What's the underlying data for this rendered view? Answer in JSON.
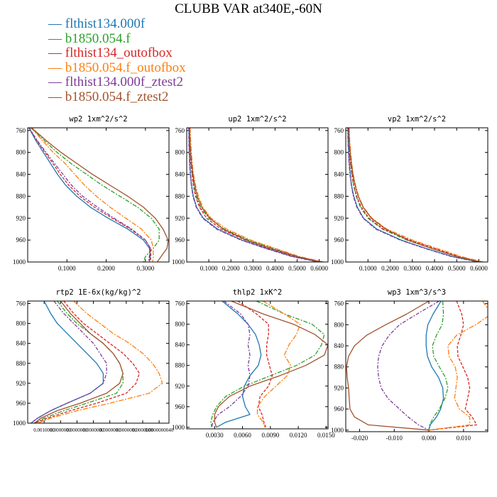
{
  "title": "CLUBB VAR at340E,-60N",
  "legend": [
    {
      "name": "flthist134.000f",
      "color": "#1f77b4"
    },
    {
      "name": "b1850.054.f",
      "color": "#2ca02c"
    },
    {
      "name": "flthist134_outofbox",
      "color": "#d62728"
    },
    {
      "name": "b1850.054.f_outofbox",
      "color": "#ff7f0e"
    },
    {
      "name": "flthist134.000f_ztest2",
      "color": "#7d3c98"
    },
    {
      "name": "b1850.054.f_ztest2",
      "color": "#a0522d"
    }
  ],
  "chart_data": [
    {
      "type": "line",
      "title": "wp2   1xm^2/s^2",
      "xlim": [
        0.0,
        0.36
      ],
      "ylim": [
        1000,
        755
      ],
      "xticks": [
        "0.1000",
        "0.2000",
        "0.3000"
      ],
      "xtick_values": [
        0.1,
        0.2,
        0.3
      ],
      "yticks": [
        760,
        800,
        840,
        880,
        920,
        960,
        1000
      ],
      "y": [
        755,
        780,
        800,
        820,
        840,
        860,
        880,
        900,
        920,
        940,
        960,
        975,
        990,
        1000
      ],
      "series": [
        {
          "values": [
            0.003,
            0.022,
            0.04,
            0.058,
            0.076,
            0.097,
            0.125,
            0.16,
            0.205,
            0.255,
            0.295,
            0.31,
            0.312,
            0.31
          ]
        },
        {
          "values": [
            0.008,
            0.045,
            0.075,
            0.11,
            0.15,
            0.19,
            0.235,
            0.28,
            0.315,
            0.335,
            0.335,
            0.32,
            0.3,
            0.295
          ]
        },
        {
          "values": [
            0.004,
            0.025,
            0.044,
            0.064,
            0.083,
            0.105,
            0.133,
            0.17,
            0.215,
            0.262,
            0.3,
            0.313,
            0.314,
            0.312
          ]
        },
        {
          "values": [
            0.01,
            0.04,
            0.065,
            0.095,
            0.12,
            0.145,
            0.175,
            0.21,
            0.25,
            0.29,
            0.315,
            0.32,
            0.32,
            0.318
          ]
        },
        {
          "values": [
            0.003,
            0.026,
            0.047,
            0.068,
            0.09,
            0.112,
            0.14,
            0.178,
            0.22,
            0.265,
            0.3,
            0.313,
            0.31,
            0.308
          ]
        },
        {
          "values": [
            0.01,
            0.05,
            0.085,
            0.125,
            0.165,
            0.21,
            0.255,
            0.295,
            0.325,
            0.345,
            0.358,
            0.355,
            0.34,
            0.33
          ]
        }
      ]
    },
    {
      "type": "line",
      "title": "up2   1xm^2/s^2",
      "xlim": [
        0.0,
        0.64
      ],
      "ylim": [
        1000,
        755
      ],
      "xticks": [
        "0.1000",
        "0.2000",
        "0.3000",
        "0.4000",
        "0.5000",
        "0.6000"
      ],
      "xtick_values": [
        0.1,
        0.2,
        0.3,
        0.4,
        0.5,
        0.6
      ],
      "yticks": [
        760,
        800,
        840,
        880,
        920,
        960,
        1000
      ],
      "y": [
        755,
        780,
        800,
        820,
        840,
        860,
        880,
        900,
        920,
        940,
        960,
        975,
        990,
        1000
      ],
      "series": [
        {
          "values": [
            0.01,
            0.011,
            0.012,
            0.014,
            0.017,
            0.022,
            0.03,
            0.045,
            0.075,
            0.14,
            0.25,
            0.36,
            0.48,
            0.6
          ]
        },
        {
          "values": [
            0.012,
            0.014,
            0.017,
            0.02,
            0.025,
            0.032,
            0.043,
            0.062,
            0.1,
            0.17,
            0.28,
            0.39,
            0.5,
            0.6
          ]
        },
        {
          "values": [
            0.012,
            0.014,
            0.016,
            0.019,
            0.024,
            0.03,
            0.04,
            0.058,
            0.09,
            0.155,
            0.265,
            0.37,
            0.49,
            0.605
          ]
        },
        {
          "values": [
            0.015,
            0.018,
            0.021,
            0.025,
            0.031,
            0.04,
            0.053,
            0.073,
            0.11,
            0.18,
            0.29,
            0.4,
            0.51,
            0.62
          ]
        },
        {
          "values": [
            0.009,
            0.01,
            0.011,
            0.013,
            0.016,
            0.021,
            0.028,
            0.043,
            0.072,
            0.135,
            0.245,
            0.355,
            0.475,
            0.595
          ]
        },
        {
          "values": [
            0.013,
            0.015,
            0.018,
            0.022,
            0.028,
            0.036,
            0.048,
            0.068,
            0.105,
            0.165,
            0.27,
            0.38,
            0.5,
            0.61
          ]
        }
      ]
    },
    {
      "type": "line",
      "title": "vp2   1xm^2/s^2",
      "xlim": [
        0.0,
        0.64
      ],
      "ylim": [
        1000,
        755
      ],
      "xticks": [
        "0.1000",
        "0.2000",
        "0.3000",
        "0.4000",
        "0.5000",
        "0.6000"
      ],
      "xtick_values": [
        0.1,
        0.2,
        0.3,
        0.4,
        0.5,
        0.6
      ],
      "yticks": [
        760,
        800,
        840,
        880,
        920,
        960,
        1000
      ],
      "y": [
        755,
        780,
        800,
        820,
        840,
        860,
        880,
        900,
        920,
        940,
        960,
        975,
        990,
        1000
      ],
      "series": [
        {
          "values": [
            0.01,
            0.011,
            0.013,
            0.016,
            0.02,
            0.026,
            0.036,
            0.052,
            0.08,
            0.14,
            0.25,
            0.36,
            0.48,
            0.6
          ]
        },
        {
          "values": [
            0.012,
            0.014,
            0.017,
            0.021,
            0.027,
            0.035,
            0.047,
            0.066,
            0.1,
            0.165,
            0.275,
            0.385,
            0.5,
            0.6
          ]
        },
        {
          "values": [
            0.013,
            0.015,
            0.018,
            0.022,
            0.028,
            0.036,
            0.049,
            0.07,
            0.105,
            0.17,
            0.29,
            0.4,
            0.51,
            0.605
          ]
        },
        {
          "values": [
            0.015,
            0.018,
            0.022,
            0.027,
            0.034,
            0.044,
            0.058,
            0.08,
            0.118,
            0.185,
            0.3,
            0.41,
            0.52,
            0.62
          ]
        },
        {
          "values": [
            0.009,
            0.01,
            0.012,
            0.015,
            0.019,
            0.025,
            0.034,
            0.05,
            0.078,
            0.135,
            0.245,
            0.355,
            0.475,
            0.595
          ]
        },
        {
          "values": [
            0.014,
            0.016,
            0.02,
            0.025,
            0.032,
            0.042,
            0.056,
            0.078,
            0.115,
            0.18,
            0.28,
            0.385,
            0.5,
            0.61
          ]
        }
      ]
    },
    {
      "type": "line",
      "title": "rtp2   1E-6x(kg/kg)^2",
      "xlim": [
        0.0,
        4.3e-06
      ],
      "ylim": [
        1000,
        755
      ],
      "xticks": [
        "0.0010000",
        "0.0000000",
        "0.0000000",
        "0.0000000",
        "0.0000000",
        "0.0000000",
        "0.0000000",
        "0.0000000040"
      ],
      "xtick_values": [
        5e-07,
        1e-06,
        1.5e-06,
        2e-06,
        2.5e-06,
        3e-06,
        3.5e-06,
        4e-06
      ],
      "yticks": [
        760,
        800,
        840,
        880,
        920,
        960,
        1000
      ],
      "y": [
        755,
        780,
        800,
        820,
        840,
        860,
        880,
        900,
        920,
        940,
        960,
        975,
        990,
        1000
      ],
      "series": [
        {
          "values": [
            5e-07,
            7e-07,
            9e-07,
            1.2e-06,
            1.5e-06,
            1.8e-06,
            2.1e-06,
            2.3e-06,
            2.3e-06,
            1.9e-06,
            1.2e-06,
            7e-07,
            3e-07,
            1e-07
          ]
        },
        {
          "values": [
            9e-07,
            1.2e-06,
            1.5e-06,
            1.9e-06,
            2.3e-06,
            2.6e-06,
            2.8e-06,
            2.9e-06,
            2.9e-06,
            2.7e-06,
            1.8e-06,
            1.1e-06,
            5e-07,
            2e-07
          ]
        },
        {
          "values": [
            1.1e-06,
            1.4e-06,
            1.7e-06,
            2.1e-06,
            2.5e-06,
            2.9e-06,
            3.2e-06,
            3.4e-06,
            3.3e-06,
            3e-06,
            2.1e-06,
            1.3e-06,
            6e-07,
            2e-07
          ]
        },
        {
          "values": [
            1.4e-06,
            1.8e-06,
            2.2e-06,
            2.6e-06,
            3.1e-06,
            3.5e-06,
            3.8e-06,
            4e-06,
            4.1e-06,
            3.7e-06,
            2.5e-06,
            1.5e-06,
            7e-07,
            3e-07
          ]
        },
        {
          "values": [
            8e-07,
            1.1e-06,
            1.4e-06,
            1.7e-06,
            2e-06,
            2.2e-06,
            2.4e-06,
            2.4e-06,
            2.3e-06,
            1.9e-06,
            1.2e-06,
            7e-07,
            3e-07,
            1e-07
          ]
        },
        {
          "values": [
            1e-06,
            1.3e-06,
            1.6e-06,
            1.9e-06,
            2.3e-06,
            2.6e-06,
            2.8e-06,
            2.9e-06,
            2.8e-06,
            2.4e-06,
            1.6e-06,
            9e-07,
            4e-07,
            2e-07
          ]
        }
      ]
    },
    {
      "type": "line",
      "title": "thlp2   1xK^2",
      "xlim": [
        0.0,
        0.0152
      ],
      "ylim": [
        1003,
        755
      ],
      "xticks": [
        "0.0030",
        "0.0060",
        "0.0090",
        "0.0120",
        "0.0150"
      ],
      "xtick_values": [
        0.003,
        0.006,
        0.009,
        0.012,
        0.015
      ],
      "yticks": [
        760,
        800,
        840,
        880,
        920,
        960,
        1000
      ],
      "y": [
        755,
        780,
        800,
        820,
        840,
        860,
        880,
        900,
        920,
        940,
        960,
        975,
        990,
        1000
      ],
      "series": [
        {
          "values": [
            0.0038,
            0.0055,
            0.0066,
            0.0074,
            0.0078,
            0.008,
            0.0077,
            0.0068,
            0.0062,
            0.006,
            0.0063,
            0.0068,
            0.0042,
            0.0032
          ]
        },
        {
          "values": [
            0.0075,
            0.0105,
            0.0135,
            0.0148,
            0.0145,
            0.0138,
            0.0118,
            0.009,
            0.0062,
            0.0042,
            0.0032,
            0.0028,
            0.0026,
            0.0027
          ]
        },
        {
          "values": [
            0.0055,
            0.0075,
            0.0088,
            0.0088,
            0.0086,
            0.0086,
            0.0089,
            0.0092,
            0.0088,
            0.0079,
            0.0077,
            0.0081,
            0.0083,
            0.0085
          ]
        },
        {
          "values": [
            0.0082,
            0.0105,
            0.0122,
            0.0118,
            0.011,
            0.0105,
            0.0112,
            0.0108,
            0.0096,
            0.0084,
            0.0076,
            0.0076,
            0.0082,
            0.0084
          ]
        },
        {
          "values": [
            0.004,
            0.0058,
            0.0066,
            0.0068,
            0.0066,
            0.0068,
            0.0066,
            0.0068,
            0.0066,
            0.0058,
            0.0046,
            0.0034,
            0.0028,
            0.0027
          ]
        },
        {
          "values": [
            0.0048,
            0.0082,
            0.0115,
            0.0138,
            0.0152,
            0.0148,
            0.0128,
            0.01,
            0.0068,
            0.0046,
            0.0034,
            0.003,
            0.003,
            0.0032
          ]
        }
      ]
    },
    {
      "type": "line",
      "title": "wp3   1xm^3/s^3",
      "xlim": [
        -0.024,
        0.017
      ],
      "ylim": [
        1003,
        755
      ],
      "xticks": [
        "-0.020",
        "-0.010",
        "0.000",
        "0.010"
      ],
      "xtick_values": [
        -0.02,
        -0.01,
        0.0,
        0.01
      ],
      "yticks": [
        760,
        800,
        840,
        880,
        920,
        960,
        1000
      ],
      "y": [
        755,
        780,
        800,
        820,
        840,
        860,
        880,
        900,
        920,
        940,
        960,
        975,
        990,
        1000
      ],
      "series": [
        {
          "values": [
            0.0035,
            0.0012,
            -0.0003,
            -0.0008,
            -0.0008,
            -0.0004,
            0.0008,
            0.0028,
            0.004,
            0.0042,
            0.0034,
            0.0022,
            0.0004,
            0.0
          ]
        },
        {
          "values": [
            0.004,
            0.0042,
            0.0038,
            0.0022,
            0.001,
            0.0014,
            0.003,
            0.0048,
            0.0055,
            0.0046,
            0.003,
            0.0014,
            0.0002,
            0.0
          ]
        },
        {
          "values": [
            0.008,
            0.0095,
            0.01,
            0.0092,
            0.0082,
            0.0084,
            0.0098,
            0.0112,
            0.0118,
            0.0112,
            0.0105,
            0.0125,
            0.0138,
            0.0
          ]
        },
        {
          "values": [
            0.0155,
            0.018,
            0.0135,
            0.008,
            0.0055,
            0.0058,
            0.0076,
            0.0082,
            0.0078,
            0.0074,
            0.0088,
            0.0118,
            0.0118,
            0.0
          ]
        },
        {
          "values": [
            0.003,
            -0.0035,
            -0.0085,
            -0.0115,
            -0.0135,
            -0.0145,
            -0.0148,
            -0.0145,
            -0.0138,
            -0.0118,
            -0.0085,
            -0.006,
            -0.003,
            0.0
          ]
        },
        {
          "values": [
            0.0,
            -0.0065,
            -0.0125,
            -0.018,
            -0.0215,
            -0.0232,
            -0.0238,
            -0.0236,
            -0.0232,
            -0.023,
            -0.0228,
            -0.0215,
            -0.0175,
            0.0
          ]
        }
      ]
    }
  ]
}
